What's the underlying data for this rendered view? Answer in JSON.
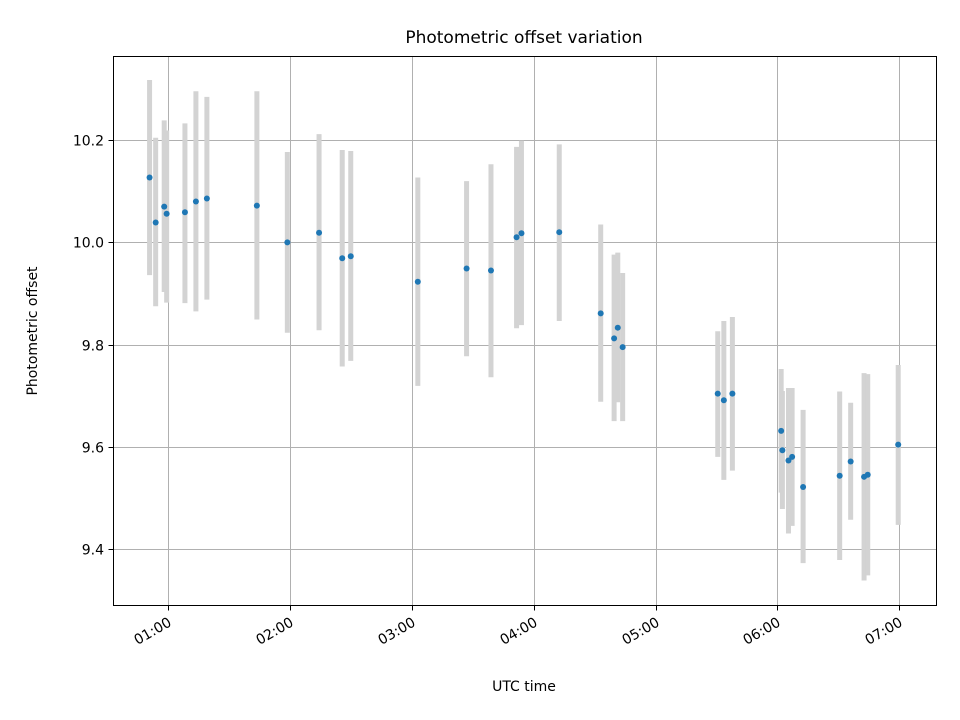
{
  "chart_data": {
    "type": "scatter",
    "title": "Photometric offset variation",
    "xlabel": "UTC time",
    "ylabel": "Photometric offset",
    "x_unit": "hours UTC",
    "xlim": [
      0.55,
      7.3
    ],
    "ylim": [
      9.29,
      10.365
    ],
    "x_ticks": [
      {
        "value": 1,
        "label": "01:00"
      },
      {
        "value": 2,
        "label": "02:00"
      },
      {
        "value": 3,
        "label": "03:00"
      },
      {
        "value": 4,
        "label": "04:00"
      },
      {
        "value": 5,
        "label": "05:00"
      },
      {
        "value": 6,
        "label": "06:00"
      },
      {
        "value": 7,
        "label": "07:00"
      }
    ],
    "y_ticks": [
      {
        "value": 9.4,
        "label": "9.4"
      },
      {
        "value": 9.6,
        "label": "9.6"
      },
      {
        "value": 9.8,
        "label": "9.8"
      },
      {
        "value": 10.0,
        "label": "10.0"
      },
      {
        "value": 10.2,
        "label": "10.2"
      }
    ],
    "grid": true,
    "colors": {
      "point": "#1f77b4",
      "errorbar": "#d3d3d3",
      "grid": "#b0b0b0"
    },
    "series": [
      {
        "points": [
          {
            "x": 0.85,
            "y": 10.127,
            "lo": 9.936,
            "hi": 10.318
          },
          {
            "x": 0.9,
            "y": 10.039,
            "lo": 9.875,
            "hi": 10.205
          },
          {
            "x": 0.97,
            "y": 10.07,
            "lo": 9.903,
            "hi": 10.239
          },
          {
            "x": 0.99,
            "y": 10.056,
            "lo": 9.882,
            "hi": 10.219
          },
          {
            "x": 1.14,
            "y": 10.059,
            "lo": 9.881,
            "hi": 10.233
          },
          {
            "x": 1.23,
            "y": 10.08,
            "lo": 9.865,
            "hi": 10.296
          },
          {
            "x": 1.32,
            "y": 10.086,
            "lo": 9.888,
            "hi": 10.285
          },
          {
            "x": 1.73,
            "y": 10.072,
            "lo": 9.849,
            "hi": 10.296
          },
          {
            "x": 1.98,
            "y": 10.0,
            "lo": 9.823,
            "hi": 10.177
          },
          {
            "x": 2.24,
            "y": 10.019,
            "lo": 9.828,
            "hi": 10.212
          },
          {
            "x": 2.43,
            "y": 9.969,
            "lo": 9.757,
            "hi": 10.181
          },
          {
            "x": 2.5,
            "y": 9.973,
            "lo": 9.768,
            "hi": 10.179
          },
          {
            "x": 3.05,
            "y": 9.923,
            "lo": 9.719,
            "hi": 10.127
          },
          {
            "x": 3.45,
            "y": 9.949,
            "lo": 9.777,
            "hi": 10.12
          },
          {
            "x": 3.65,
            "y": 9.945,
            "lo": 9.736,
            "hi": 10.153
          },
          {
            "x": 3.86,
            "y": 10.01,
            "lo": 9.832,
            "hi": 10.187
          },
          {
            "x": 3.9,
            "y": 10.018,
            "lo": 9.838,
            "hi": 10.199
          },
          {
            "x": 4.21,
            "y": 10.02,
            "lo": 9.846,
            "hi": 10.192
          },
          {
            "x": 4.55,
            "y": 9.861,
            "lo": 9.688,
            "hi": 10.035
          },
          {
            "x": 4.66,
            "y": 9.812,
            "lo": 9.65,
            "hi": 9.976
          },
          {
            "x": 4.69,
            "y": 9.833,
            "lo": 9.687,
            "hi": 9.98
          },
          {
            "x": 4.73,
            "y": 9.795,
            "lo": 9.65,
            "hi": 9.94
          },
          {
            "x": 5.51,
            "y": 9.704,
            "lo": 9.58,
            "hi": 9.826
          },
          {
            "x": 5.56,
            "y": 9.691,
            "lo": 9.535,
            "hi": 9.846
          },
          {
            "x": 5.63,
            "y": 9.704,
            "lo": 9.553,
            "hi": 9.854
          },
          {
            "x": 6.03,
            "y": 9.631,
            "lo": 9.51,
            "hi": 9.752
          },
          {
            "x": 6.04,
            "y": 9.593,
            "lo": 9.478,
            "hi": 9.709
          },
          {
            "x": 6.09,
            "y": 9.573,
            "lo": 9.43,
            "hi": 9.715
          },
          {
            "x": 6.12,
            "y": 9.58,
            "lo": 9.445,
            "hi": 9.715
          },
          {
            "x": 6.21,
            "y": 9.521,
            "lo": 9.372,
            "hi": 9.672
          },
          {
            "x": 6.51,
            "y": 9.543,
            "lo": 9.378,
            "hi": 9.708
          },
          {
            "x": 6.6,
            "y": 9.571,
            "lo": 9.457,
            "hi": 9.686
          },
          {
            "x": 6.71,
            "y": 9.541,
            "lo": 9.338,
            "hi": 9.744
          },
          {
            "x": 6.74,
            "y": 9.545,
            "lo": 9.348,
            "hi": 9.742
          },
          {
            "x": 6.99,
            "y": 9.604,
            "lo": 9.447,
            "hi": 9.76
          }
        ]
      }
    ]
  }
}
